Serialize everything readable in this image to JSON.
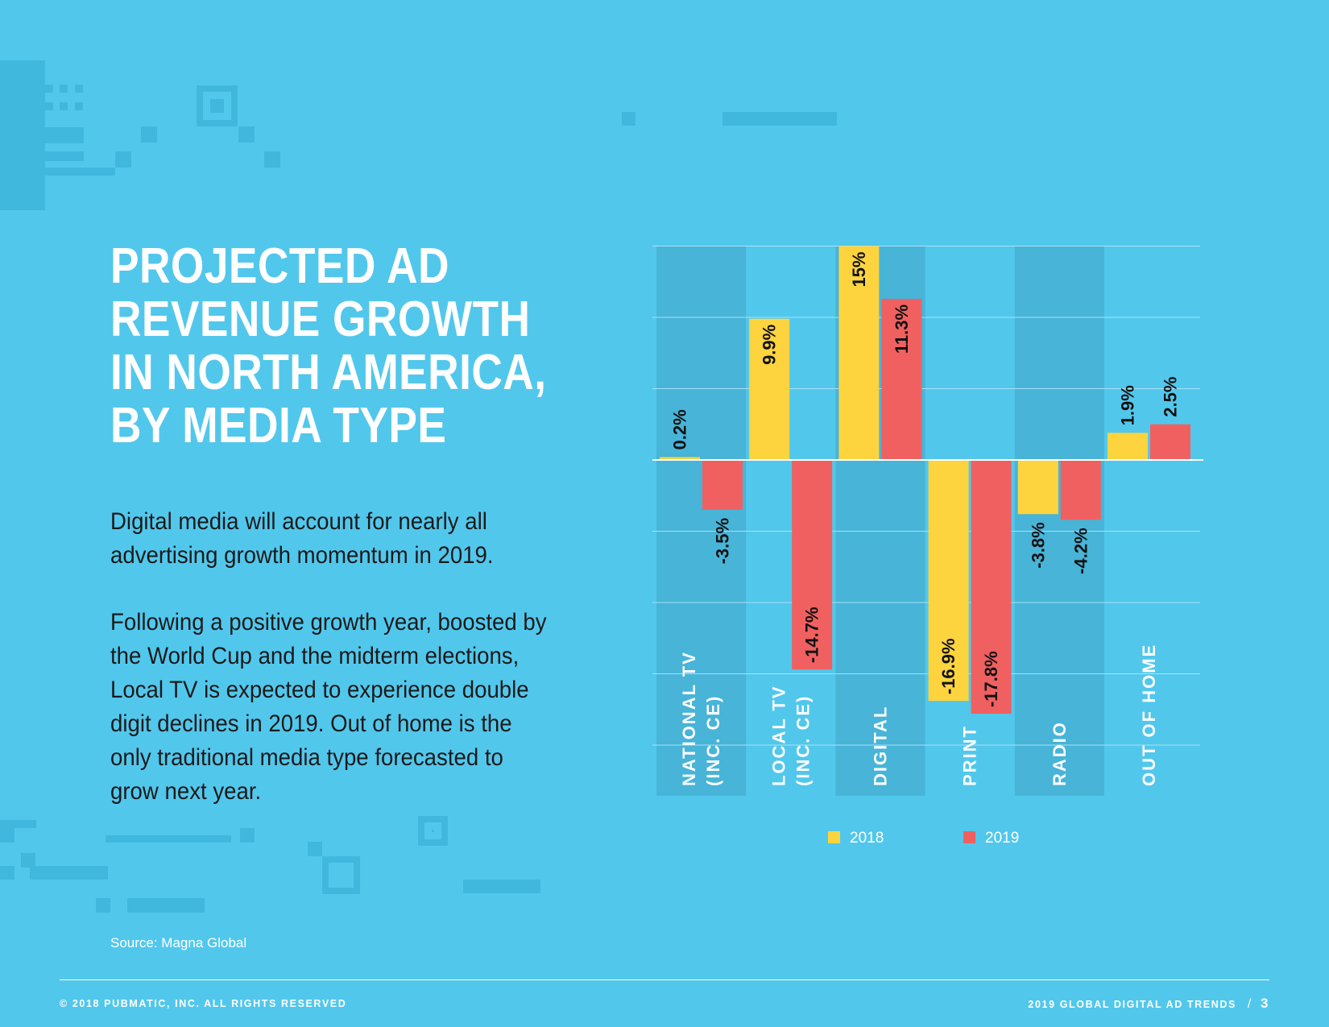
{
  "title_lines": [
    "PROJECTED AD",
    "REVENUE GROWTH",
    "IN NORTH AMERICA,",
    "BY MEDIA TYPE"
  ],
  "paragraphs": [
    "Digital media will account for nearly all advertising growth momentum in 2019.",
    "Following a positive growth year, boosted by the World Cup and the midterm elections, Local TV is expected to experience double digit declines in 2019. Out of home is the only traditional media type forecasted to grow next year."
  ],
  "source": "Source: Magna Global",
  "footer": {
    "copyright": "© 2018 PUBMATIC, INC. ALL RIGHTS RESERVED",
    "report": "2019 GLOBAL DIGITAL AD TRENDS",
    "separator": "/",
    "page": "3"
  },
  "colors": {
    "background": "#52c7ec",
    "band": "#47b4d8",
    "series_2018": "#fdd43e",
    "series_2019": "#f06060"
  },
  "chart_data": {
    "type": "bar",
    "categories": [
      "NATIONAL TV\n(INC. CE)",
      "LOCAL TV\n(INC. CE)",
      "DIGITAL",
      "PRINT",
      "RADIO",
      "OUT OF HOME"
    ],
    "series": [
      {
        "name": "2018",
        "values": [
          0.2,
          9.9,
          15,
          -16.9,
          -3.8,
          1.9
        ],
        "labels": [
          "0.2%",
          "9.9%",
          "15%",
          "-16.9%",
          "-3.8%",
          "1.9%"
        ]
      },
      {
        "name": "2019",
        "values": [
          -3.5,
          -14.7,
          11.3,
          -17.8,
          -4.2,
          2.5
        ],
        "labels": [
          "-3.5%",
          "-14.7%",
          "11.3%",
          "-17.8%",
          "-4.2%",
          "2.5%"
        ]
      }
    ],
    "ylim": [
      -23,
      15
    ],
    "grid": true,
    "legend_position": "bottom-center"
  }
}
